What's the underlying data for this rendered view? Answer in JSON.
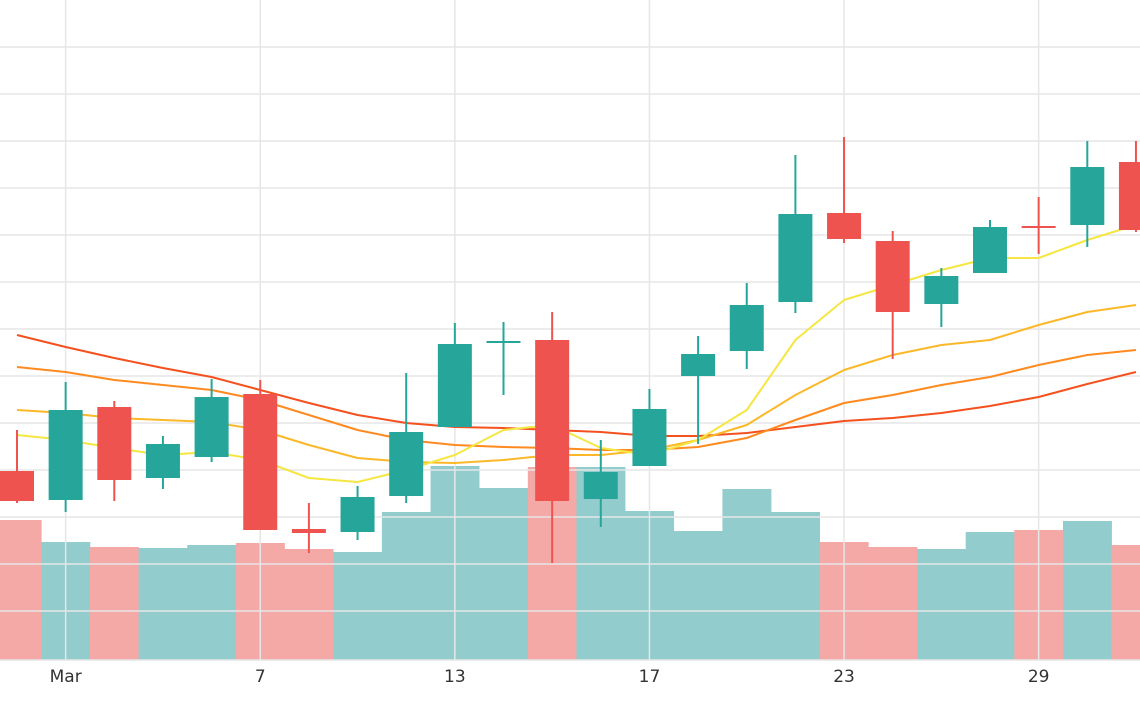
{
  "chart_data": {
    "type": "candlestick",
    "categories": [
      null,
      "Mar",
      null,
      null,
      null,
      "7",
      null,
      null,
      null,
      "13",
      null,
      null,
      null,
      "17",
      null,
      null,
      null,
      "23",
      null,
      null,
      null,
      "29",
      null,
      null
    ],
    "open": [
      18.9,
      16.0,
      25.3,
      18.2,
      20.3,
      26.6,
      13.1,
      12.8,
      16.4,
      23.3,
      31.8,
      32.0,
      16.1,
      19.4,
      28.4,
      30.9,
      35.8,
      44.7,
      41.9,
      35.6,
      38.7,
      43.4,
      43.5,
      49.8
    ],
    "high": [
      23.0,
      27.8,
      25.9,
      22.4,
      28.1,
      28.0,
      15.7,
      17.4,
      28.7,
      33.7,
      33.8,
      34.8,
      22.0,
      27.1,
      32.4,
      37.7,
      50.5,
      52.3,
      42.9,
      39.2,
      44.0,
      46.3,
      51.9,
      51.9
    ],
    "low": [
      15.7,
      14.8,
      15.9,
      17.1,
      19.8,
      13.0,
      10.7,
      12.0,
      15.7,
      23.3,
      26.5,
      9.7,
      13.3,
      19.4,
      21.6,
      29.1,
      34.7,
      41.7,
      30.1,
      33.3,
      38.7,
      40.6,
      41.3,
      42.8
    ],
    "close": [
      15.9,
      25.0,
      18.0,
      21.6,
      26.3,
      13.0,
      12.7,
      16.3,
      22.8,
      31.6,
      31.9,
      15.9,
      18.8,
      25.1,
      30.6,
      35.5,
      44.6,
      42.1,
      34.8,
      38.4,
      43.3,
      43.3,
      49.3,
      43.0
    ],
    "volume": [
      140,
      118,
      113,
      112,
      115,
      117,
      111,
      108,
      148,
      194,
      172,
      193,
      193,
      149,
      129,
      171,
      148,
      118,
      113,
      111,
      128,
      130,
      139,
      115
    ],
    "up_color": "#26a69a",
    "down_color": "#ef5350",
    "volume_up_color": "#92cccc",
    "volume_down_color": "#f5a9a6",
    "series": [
      {
        "color": "#f4511e",
        "values": [
          32.5,
          31.3,
          30.2,
          29.2,
          28.3,
          27.0,
          25.7,
          24.5,
          23.7,
          23.3,
          23.2,
          23.0,
          22.8,
          22.4,
          22.4,
          22.7,
          23.3,
          23.9,
          24.2,
          24.7,
          25.4,
          26.3,
          27.6,
          28.8
        ]
      },
      {
        "color": "#ff8a1f",
        "values": [
          29.3,
          28.8,
          28.0,
          27.5,
          27.0,
          26.0,
          24.5,
          23.0,
          22.0,
          21.5,
          21.3,
          21.2,
          21.0,
          21.0,
          21.3,
          22.2,
          24.0,
          25.7,
          26.5,
          27.5,
          28.3,
          29.5,
          30.5,
          31.0
        ]
      },
      {
        "color": "#fbb829",
        "values": [
          25.0,
          24.7,
          24.2,
          24.0,
          23.8,
          23.0,
          21.5,
          20.2,
          19.8,
          19.7,
          20.0,
          20.5,
          20.5,
          21.0,
          22.0,
          23.5,
          26.5,
          29.0,
          30.5,
          31.5,
          32.0,
          33.5,
          34.8,
          35.5
        ]
      },
      {
        "color": "#f5e642",
        "values": [
          22.5,
          22.0,
          21.2,
          20.5,
          20.8,
          20.0,
          18.2,
          17.8,
          19.0,
          20.5,
          23.0,
          23.5,
          21.2,
          20.5,
          22.0,
          25.0,
          32.0,
          36.0,
          37.5,
          39.0,
          40.2,
          40.2,
          42.0,
          43.5
        ]
      }
    ],
    "ylim": [
      0,
      66
    ],
    "yticks": [
      61.3,
      56.6,
      51.9,
      47.2,
      42.5,
      37.8,
      33.1,
      28.4,
      23.7,
      19.0,
      14.3,
      9.6,
      4.9
    ],
    "volume_ylim": [
      0,
      660
    ],
    "grid": true
  }
}
